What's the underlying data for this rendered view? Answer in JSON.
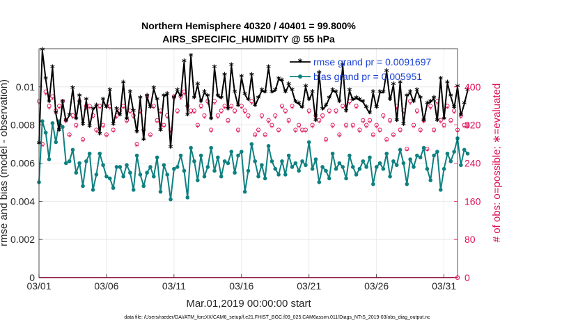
{
  "chart_data": {
    "type": "line",
    "title": "Northern Hemisphere 40320 / 40401 = 99.800%",
    "subtitle": "AIRS_SPECIFIC_HUMIDITY @ 55 hPa",
    "xlabel": "Mar.01,2019 00:00:00 start",
    "ylabel_left": "rmse and bias (model - observation)",
    "ylabel_right": "# of obs: o=possible; ∗=evaluated",
    "footer": "data file: /Users/raeder/DAI/ATM_forcXX/CAM6_setup/f.e21.FHIST_BGC.f09_025.CAM6assim.011/Diags_NTrS_2019-03/obs_diag_output.nc",
    "xlim": [
      0,
      31
    ],
    "ylim_left": [
      0,
      0.012
    ],
    "ylim_right": [
      0,
      480
    ],
    "x_tick_labels": [
      "03/01",
      "03/06",
      "03/11",
      "03/16",
      "03/21",
      "03/26",
      "03/31"
    ],
    "x_tick_days": [
      0,
      5,
      10,
      15,
      20,
      25,
      30
    ],
    "y_left_ticks": [
      0,
      0.002,
      0.004,
      0.006,
      0.008,
      0.01
    ],
    "y_left_tick_labels": [
      "0",
      "0.002",
      "0.004",
      "0.006",
      "0.008",
      "0.01"
    ],
    "y_right_ticks": [
      0,
      80,
      160,
      240,
      320,
      400
    ],
    "y_right_tick_labels": [
      "0",
      "80",
      "160",
      "240",
      "320",
      "400"
    ],
    "legend": [
      {
        "name": "rmse",
        "label": "rmse grand pr = 0.0091697",
        "color": "#000000"
      },
      {
        "name": "bias",
        "label": "bias grand pr = 0.005951",
        "color": "#0f8080"
      }
    ],
    "colors": {
      "rmse": "#000000",
      "bias": "#0f8080",
      "counts": "#e0105a",
      "legend_text": "#1a3fd6"
    },
    "x_step_days": 0.25,
    "series": [
      {
        "name": "rmse",
        "axis": "left",
        "values": [
          0.007,
          0.0119,
          0.0104,
          0.0092,
          0.011,
          0.0086,
          0.0077,
          0.0092,
          0.0082,
          0.0085,
          0.0099,
          0.0083,
          0.0095,
          0.008,
          0.0093,
          0.0079,
          0.0088,
          0.009,
          0.0075,
          0.0093,
          0.0089,
          0.0098,
          0.008,
          0.0088,
          0.0085,
          0.0102,
          0.0083,
          0.0097,
          0.0087,
          0.0076,
          0.0094,
          0.0072,
          0.0095,
          0.0089,
          0.0099,
          0.0093,
          0.0077,
          0.0095,
          0.0096,
          0.0068,
          0.0094,
          0.0098,
          0.0095,
          0.0113,
          0.0085,
          0.0116,
          0.0094,
          0.0101,
          0.0092,
          0.0097,
          0.0095,
          0.0083,
          0.011,
          0.0095,
          0.0094,
          0.0106,
          0.0088,
          0.0111,
          0.0097,
          0.009,
          0.0105,
          0.0096,
          0.0093,
          0.0106,
          0.009,
          0.0094,
          0.0098,
          0.0097,
          0.011,
          0.0097,
          0.0098,
          0.0104,
          0.0103,
          0.0097,
          0.0101,
          0.0098,
          0.0092,
          0.0091,
          0.0089,
          0.01,
          0.0093,
          0.0097,
          0.0082,
          0.0107,
          0.0088,
          0.009,
          0.0094,
          0.0098,
          0.0097,
          0.0092,
          0.0111,
          0.0087,
          0.0098,
          0.0093,
          0.0094,
          0.0093,
          0.0092,
          0.0089,
          0.0086,
          0.0097,
          0.0089,
          0.0097,
          0.0097,
          0.0108,
          0.0093,
          0.0101,
          0.0082,
          0.0102,
          0.008,
          0.0095,
          0.0097,
          0.0092,
          0.0098,
          0.0094,
          0.0082,
          0.0091,
          0.0092,
          0.0094,
          0.0082,
          0.0104,
          0.0083,
          0.0102,
          0.0095,
          0.0089,
          0.01,
          0.0085,
          0.0091,
          0.0098
        ]
      },
      {
        "name": "bias",
        "axis": "left",
        "values": [
          0.005,
          0.0082,
          0.0076,
          0.0062,
          0.0081,
          0.0071,
          0.0082,
          0.0079,
          0.006,
          0.0061,
          0.0067,
          0.0055,
          0.006,
          0.0048,
          0.0061,
          0.0065,
          0.0046,
          0.0054,
          0.0065,
          0.0059,
          0.0053,
          0.0052,
          0.0047,
          0.0058,
          0.0058,
          0.0053,
          0.0059,
          0.0055,
          0.0046,
          0.0064,
          0.0054,
          0.0048,
          0.0055,
          0.0058,
          0.0053,
          0.0063,
          0.0045,
          0.0059,
          0.0054,
          0.0041,
          0.0057,
          0.0058,
          0.0064,
          0.0056,
          0.0042,
          0.0068,
          0.0061,
          0.0051,
          0.0064,
          0.0053,
          0.0058,
          0.0068,
          0.0056,
          0.0063,
          0.0053,
          0.0061,
          0.006,
          0.0066,
          0.0055,
          0.0064,
          0.0066,
          0.0045,
          0.0056,
          0.007,
          0.0061,
          0.0053,
          0.0059,
          0.0052,
          0.0069,
          0.0061,
          0.0057,
          0.0054,
          0.0061,
          0.0054,
          0.0064,
          0.0058,
          0.006,
          0.0056,
          0.0061,
          0.0059,
          0.0071,
          0.0057,
          0.0062,
          0.005,
          0.0058,
          0.0056,
          0.0052,
          0.0065,
          0.0057,
          0.006,
          0.0058,
          0.0052,
          0.0064,
          0.0058,
          0.0054,
          0.0057,
          0.0061,
          0.0058,
          0.0063,
          0.0049,
          0.0058,
          0.006,
          0.0057,
          0.0065,
          0.0053,
          0.0061,
          0.0059,
          0.0067,
          0.006,
          0.0049,
          0.0062,
          0.0058,
          0.0064,
          0.0063,
          0.0068,
          0.0057,
          0.0051,
          0.0064,
          0.0066,
          0.0046,
          0.0057,
          0.0065,
          0.0061,
          0.0066,
          0.0073,
          0.0059,
          0.0067,
          0.0065
        ]
      },
      {
        "name": "obs_possible",
        "axis": "right",
        "values": [
          370,
          280,
          390,
          360,
          380,
          350,
          360,
          370,
          330,
          300,
          340,
          320,
          370,
          290,
          360,
          360,
          340,
          310,
          360,
          320,
          300,
          360,
          310,
          340,
          350,
          360,
          330,
          350,
          340,
          280,
          350,
          310,
          380,
          300,
          360,
          330,
          350,
          320,
          340,
          310,
          380,
          350,
          380,
          390,
          360,
          350,
          350,
          320,
          360,
          340,
          370,
          310,
          370,
          340,
          350,
          360,
          330,
          360,
          350,
          310,
          360,
          350,
          340,
          370,
          300,
          310,
          340,
          300,
          330,
          320,
          340,
          310,
          360,
          350,
          330,
          360,
          310,
          320,
          310,
          310,
          350,
          320,
          340,
          330,
          340,
          290,
          350,
          320,
          350,
          300,
          360,
          320,
          370,
          320,
          360,
          310,
          330,
          320,
          330,
          300,
          320,
          310,
          340,
          290,
          330,
          300,
          360,
          310,
          350,
          270,
          370,
          320,
          350,
          310,
          330,
          270,
          360,
          310,
          370,
          330,
          320,
          360,
          330,
          350,
          310,
          340,
          320,
          320
        ]
      },
      {
        "name": "obs_evaluated",
        "axis": "right",
        "values": [
          364,
          276,
          384,
          354,
          374,
          344,
          355,
          364,
          325,
          296,
          335,
          315,
          364,
          286,
          354,
          355,
          335,
          306,
          355,
          315,
          296,
          354,
          306,
          335,
          345,
          355,
          325,
          345,
          335,
          276,
          345,
          306,
          374,
          296,
          355,
          325,
          345,
          316,
          335,
          306,
          374,
          345,
          374,
          384,
          355,
          344,
          345,
          316,
          355,
          335,
          364,
          306,
          364,
          335,
          345,
          355,
          325,
          355,
          345,
          306,
          355,
          345,
          335,
          364,
          296,
          306,
          335,
          296,
          325,
          315,
          335,
          306,
          355,
          345,
          325,
          355,
          306,
          315,
          306,
          306,
          345,
          315,
          335,
          325,
          335,
          286,
          345,
          315,
          345,
          296,
          355,
          315,
          364,
          315,
          355,
          306,
          325,
          315,
          325,
          296,
          315,
          306,
          335,
          286,
          325,
          296,
          354,
          306,
          345,
          266,
          364,
          315,
          345,
          306,
          325,
          266,
          354,
          306,
          364,
          325,
          315,
          355,
          325,
          345,
          306,
          335,
          315,
          315
        ]
      }
    ]
  }
}
